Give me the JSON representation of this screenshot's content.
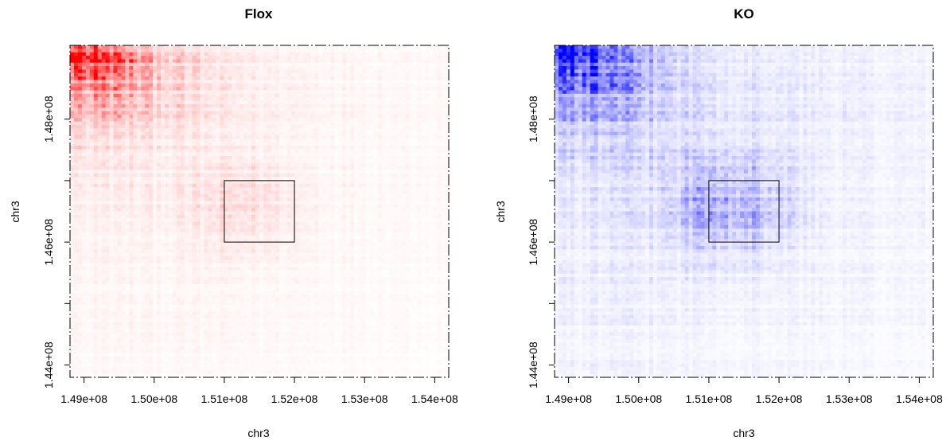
{
  "figure": {
    "colors": {
      "axis": "#000000",
      "background": "#ffffff"
    }
  },
  "chart_data": [
    {
      "type": "heatmap",
      "title": "Flox",
      "xlabel": "chr3",
      "ylabel": "chr3",
      "xlim": [
        148800000,
        154200000
      ],
      "ylim": [
        143800000,
        149200000
      ],
      "x_ticks": [
        149000000,
        150000000,
        151000000,
        152000000,
        153000000,
        154000000
      ],
      "x_tick_labels": [
        "1.49e+08",
        "1.50e+08",
        "1.51e+08",
        "1.52e+08",
        "1.53e+08",
        "1.54e+08"
      ],
      "y_ticks": [
        144000000,
        145000000,
        146000000,
        147000000,
        148000000
      ],
      "y_tick_labels": [
        "1.44e+08",
        "",
        "1.46e+08",
        "",
        "1.48e+08"
      ],
      "color": "#ff0000",
      "highlight_region": {
        "x": [
          151000000,
          152000000
        ],
        "y": [
          146000000,
          147000000
        ]
      },
      "intensity_model": {
        "hotspot": {
          "x": 149100000,
          "y": 149100000
        },
        "peak": 1.0,
        "background": 0.06
      }
    },
    {
      "type": "heatmap",
      "title": "KO",
      "xlabel": "chr3",
      "ylabel": "chr3",
      "xlim": [
        148800000,
        154200000
      ],
      "ylim": [
        143800000,
        149200000
      ],
      "x_ticks": [
        149000000,
        150000000,
        151000000,
        152000000,
        153000000,
        154000000
      ],
      "x_tick_labels": [
        "1.49e+08",
        "1.50e+08",
        "1.51e+08",
        "1.52e+08",
        "1.53e+08",
        "1.54e+08"
      ],
      "y_ticks": [
        144000000,
        145000000,
        146000000,
        147000000,
        148000000
      ],
      "y_tick_labels": [
        "1.44e+08",
        "",
        "1.46e+08",
        "",
        "1.48e+08"
      ],
      "color": "#0000ff",
      "highlight_region": {
        "x": [
          151000000,
          152000000
        ],
        "y": [
          146000000,
          147000000
        ]
      },
      "intensity_model": {
        "hotspot": {
          "x": 149100000,
          "y": 149100000
        },
        "peak": 1.0,
        "background": 0.1
      }
    }
  ]
}
